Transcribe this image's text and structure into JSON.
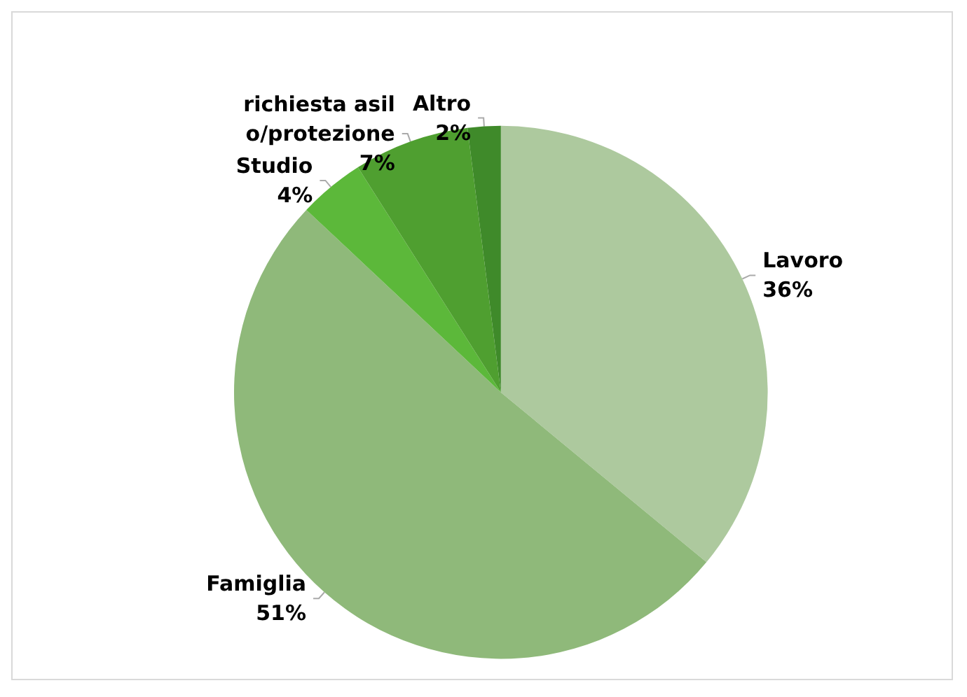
{
  "chart_data": {
    "type": "pie",
    "categories": [
      "Lavoro",
      "Famiglia",
      "Studio",
      "richiesta asilo/protezione",
      "Altro"
    ],
    "values": [
      36,
      51,
      4,
      7,
      2
    ],
    "value_labels": [
      "36%",
      "51%",
      "4%",
      "7%",
      "2%"
    ],
    "colors": [
      "#adc99e",
      "#8fb97a",
      "#5cb83a",
      "#4f9f30",
      "#3f8a2a"
    ],
    "legend": false
  }
}
